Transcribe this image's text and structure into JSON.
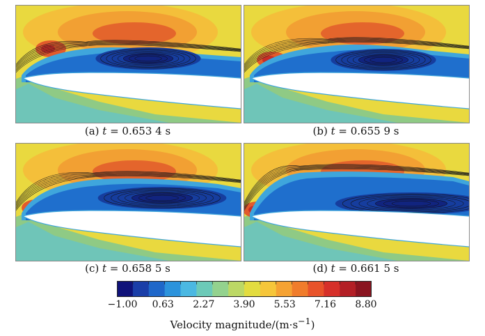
{
  "panels": [
    {
      "id": "a",
      "caption_prefix": "(a) ",
      "caption_var": "t",
      "caption_value": " = 0.653 4 s"
    },
    {
      "id": "b",
      "caption_prefix": "(b) ",
      "caption_var": "t",
      "caption_value": " = 0.655 9 s"
    },
    {
      "id": "c",
      "caption_prefix": "(c) ",
      "caption_var": "t",
      "caption_value": " = 0.658 5 s"
    },
    {
      "id": "d",
      "caption_prefix": "(d) ",
      "caption_var": "t",
      "caption_value": " = 0.661 5 s"
    }
  ],
  "colorbar": {
    "ticks": [
      "−1.00",
      "0.63",
      "2.27",
      "3.90",
      "5.53",
      "7.16",
      "8.80"
    ],
    "tick_values": [
      -1.0,
      0.63,
      2.27,
      3.9,
      5.53,
      7.16,
      8.8
    ],
    "range": [
      -1.0,
      8.8
    ],
    "title_text": "Velocity magnitude/(m·s",
    "title_sup": "−1",
    "title_close": ")",
    "colors": [
      "#10137a",
      "#1a3ea8",
      "#1f67c9",
      "#2c93dc",
      "#4bb8e2",
      "#6ccab8",
      "#93d28e",
      "#bcd865",
      "#e3dc3f",
      "#f6c63a",
      "#f5a233",
      "#f07c2b",
      "#e8532a",
      "#d6302a",
      "#b31f26",
      "#8a1420"
    ]
  }
}
